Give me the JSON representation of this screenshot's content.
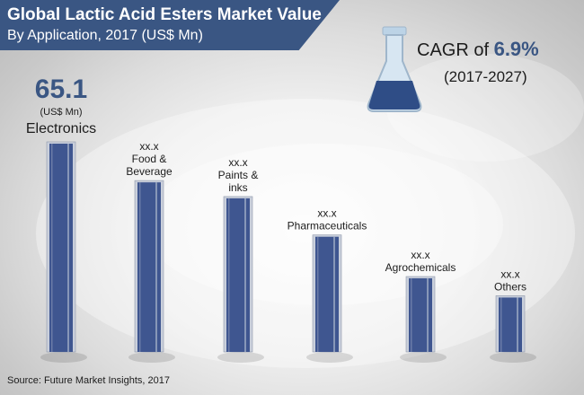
{
  "title": "Global Lactic Acid Esters Market Value",
  "subtitle": "By Application, 2017 (US$ Mn)",
  "cagr": {
    "prefix": "CAGR of ",
    "value": "6.9%",
    "range": "(2017-2027)"
  },
  "source": "Source: Future Market Insights, 2017",
  "colors": {
    "banner": "#3a5683",
    "bar": "#3f5690",
    "bar_edge": "#c9cfdb",
    "accent": "#3a5683",
    "flask_liquid": "#2f4d86"
  },
  "icons": [
    "flask-icon"
  ],
  "chart_data": {
    "type": "bar",
    "categories": [
      "Electronics",
      "Food & Beverage",
      "Paints & inks",
      "Pharmaceuticals",
      "Agrochemicals",
      "Others"
    ],
    "category_label_lines": [
      [
        "Electronics"
      ],
      [
        "Food &",
        "Beverage"
      ],
      [
        "Paints &",
        "inks"
      ],
      [
        "Pharmaceuticals"
      ],
      [
        "Agrochemicals"
      ],
      [
        "Others"
      ]
    ],
    "values": [
      65.1,
      53,
      48,
      36,
      23,
      17
    ],
    "value_labels": [
      "65.1",
      "xx.x",
      "xx.x",
      "xx.x",
      "xx.x",
      "xx.x"
    ],
    "unit_label": "(US$ Mn)",
    "ylim": [
      0,
      65.1
    ],
    "legend": "none",
    "grid": false
  }
}
